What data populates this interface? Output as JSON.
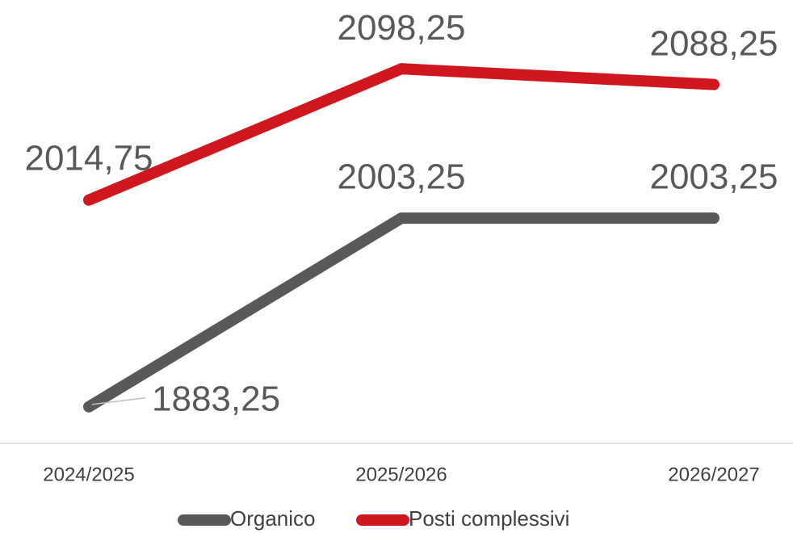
{
  "chart_data": {
    "type": "line",
    "categories": [
      "2024/2025",
      "2025/2026",
      "2026/2027"
    ],
    "series": [
      {
        "name": "Organico",
        "color": "#595959",
        "values": [
          1883.25,
          2003.25,
          2003.25
        ],
        "value_labels": [
          "1883,25",
          "2003,25",
          "2003,25"
        ]
      },
      {
        "name": "Posti complessivi",
        "color": "#d0161f",
        "values": [
          2014.75,
          2098.25,
          2088.25
        ],
        "value_labels": [
          "2014,75",
          "2098,25",
          "2088,25"
        ]
      }
    ],
    "ylim": [
      1860,
      2142
    ],
    "legend": "bottom"
  }
}
